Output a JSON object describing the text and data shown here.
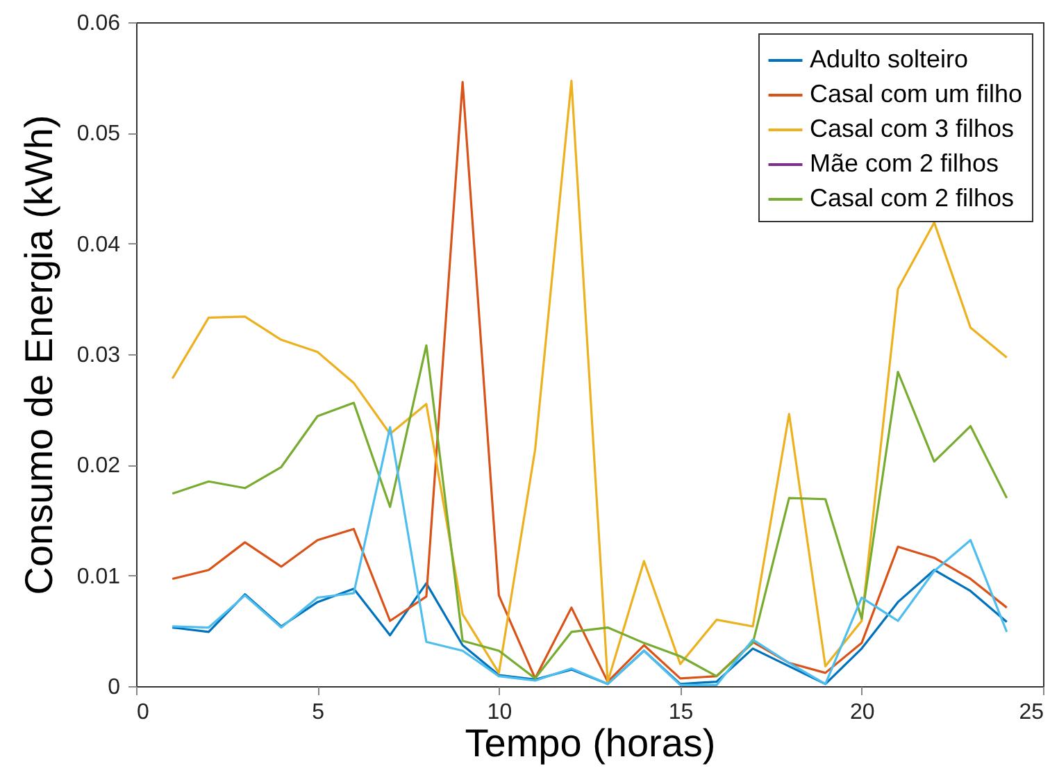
{
  "chart_data": {
    "type": "line",
    "xlabel": "Tempo (horas)",
    "ylabel": "Consumo de Energia (kWh)",
    "x": [
      1,
      2,
      3,
      4,
      5,
      6,
      7,
      8,
      9,
      10,
      11,
      12,
      13,
      14,
      15,
      16,
      17,
      18,
      19,
      20,
      21,
      22,
      23,
      24
    ],
    "xlim": [
      0,
      25
    ],
    "xticks": [
      0,
      5,
      10,
      15,
      20,
      25
    ],
    "ylim": [
      0,
      0.06
    ],
    "yticks": [
      0,
      0.01,
      0.02,
      0.03,
      0.04,
      0.05,
      0.06
    ],
    "grid": false,
    "legend": "top right",
    "line_style": "solid",
    "marker": "none",
    "series": [
      {
        "name": "Adulto solteiro",
        "color": "#0072bd",
        "values": [
          0.0053,
          0.0049,
          0.0083,
          0.0054,
          0.0076,
          0.0088,
          0.0046,
          0.0093,
          0.0037,
          0.001,
          0.0006,
          0.0015,
          0.0002,
          0.0032,
          0.0002,
          0.0004,
          0.0034,
          0.0018,
          0.0002,
          0.0034,
          0.0076,
          0.0105,
          0.0086,
          0.0058
        ]
      },
      {
        "name": "Casal com um filho",
        "color": "#d95319",
        "values": [
          0.0097,
          0.0105,
          0.013,
          0.0108,
          0.0132,
          0.0142,
          0.0059,
          0.0081,
          0.0546,
          0.0082,
          0.0007,
          0.0071,
          0.0004,
          0.0037,
          0.0007,
          0.0009,
          0.004,
          0.0021,
          0.0012,
          0.0039,
          0.0126,
          0.0116,
          0.0097,
          0.0071
        ]
      },
      {
        "name": "Casal com 3 filhos",
        "color": "#edb120",
        "values": [
          0.0278,
          0.0333,
          0.0334,
          0.0313,
          0.0302,
          0.0274,
          0.0228,
          0.0255,
          0.0065,
          0.0012,
          0.0214,
          0.0547,
          0.0004,
          0.0113,
          0.002,
          0.006,
          0.0054,
          0.0246,
          0.0018,
          0.0059,
          0.0359,
          0.0419,
          0.0324,
          0.0297
        ]
      },
      {
        "name": "Mãe com 2 filhos",
        "color": "#7e2f8e",
        "values": [
          null,
          null,
          null,
          null,
          null,
          null,
          null,
          null,
          null,
          null,
          null,
          null,
          null,
          null,
          null,
          null,
          null,
          null,
          null,
          null,
          null,
          null,
          null,
          null
        ]
      },
      {
        "name": "Casal com 2 filhos",
        "color": "#77ac30",
        "values": [
          0.0174,
          0.0185,
          0.0179,
          0.0198,
          0.0244,
          0.0256,
          0.0162,
          0.0308,
          0.0041,
          0.0032,
          0.0007,
          0.0049,
          0.0053,
          0.0039,
          0.0027,
          0.0009,
          0.0039,
          0.017,
          0.0169,
          0.0061,
          0.0284,
          0.0203,
          0.0235,
          0.017
        ]
      },
      {
        "color": "#4dbeee",
        "values": [
          0.0054,
          0.0053,
          0.0082,
          0.0053,
          0.008,
          0.0084,
          0.0234,
          0.004,
          0.0032,
          0.0009,
          0.0005,
          0.0016,
          0.0002,
          0.0032,
          0.0001,
          0.0001,
          0.0042,
          0.0021,
          0.0002,
          0.008,
          0.0059,
          0.0104,
          0.0132,
          0.0049
        ]
      }
    ]
  }
}
